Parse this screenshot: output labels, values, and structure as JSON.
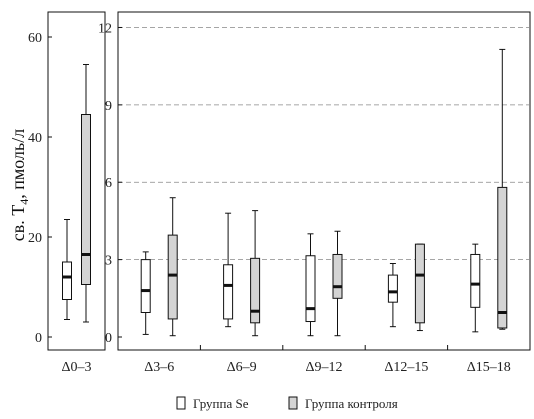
{
  "chart_data": [
    {
      "type": "box",
      "ylabel_parts": {
        "pre": "св. T",
        "sub": "4",
        "post": ", пмоль/л"
      },
      "ylim": [
        0,
        65
      ],
      "yticks": [
        0,
        20,
        40,
        60
      ],
      "grid": false,
      "categories": [
        "Δ0–3"
      ],
      "series": [
        {
          "name": "Группа Se",
          "boxes": [
            {
              "min": 3.5,
              "q1": 7.5,
              "median": 12,
              "q3": 15,
              "max": 23.5
            }
          ]
        },
        {
          "name": "Группа контроля",
          "boxes": [
            {
              "min": 3,
              "q1": 10.5,
              "median": 16.5,
              "q3": 44.5,
              "max": 54.5
            }
          ]
        }
      ]
    },
    {
      "type": "box",
      "ylim": [
        0,
        12.6
      ],
      "yticks": [
        0,
        3,
        6,
        9,
        12
      ],
      "grid": true,
      "categories": [
        "Δ3–6",
        "Δ6–9",
        "Δ9–12",
        "Δ12–15",
        "Δ15–18"
      ],
      "series": [
        {
          "name": "Группа Se",
          "boxes": [
            {
              "min": 0.1,
              "q1": 0.95,
              "median": 1.8,
              "q3": 3.0,
              "max": 3.3
            },
            {
              "min": 0.4,
              "q1": 0.7,
              "median": 2.0,
              "q3": 2.8,
              "max": 4.8
            },
            {
              "min": 0.05,
              "q1": 0.6,
              "median": 1.1,
              "q3": 3.15,
              "max": 4.0
            },
            {
              "min": 0.4,
              "q1": 1.35,
              "median": 1.75,
              "q3": 2.4,
              "max": 2.85
            },
            {
              "min": 0.2,
              "q1": 1.15,
              "median": 2.05,
              "q3": 3.2,
              "max": 3.6
            }
          ]
        },
        {
          "name": "Группа контроля",
          "boxes": [
            {
              "min": 0.05,
              "q1": 0.7,
              "median": 2.4,
              "q3": 3.95,
              "max": 5.4
            },
            {
              "min": 0.05,
              "q1": 0.55,
              "median": 1.0,
              "q3": 3.05,
              "max": 4.9
            },
            {
              "min": 0.05,
              "q1": 1.5,
              "median": 1.95,
              "q3": 3.2,
              "max": 4.1
            },
            {
              "min": 0.25,
              "q1": 0.55,
              "median": 2.4,
              "q3": 3.6,
              "max": 3.6
            },
            {
              "min": 0.3,
              "q1": 0.35,
              "median": 0.95,
              "q3": 5.8,
              "max": 11.15
            }
          ]
        }
      ]
    }
  ],
  "legend": {
    "placement": "bottom",
    "items": [
      {
        "label": "Группа Se",
        "color": "#ffffff"
      },
      {
        "label": "Группа контроля",
        "color": "#d4d4d4"
      }
    ]
  }
}
